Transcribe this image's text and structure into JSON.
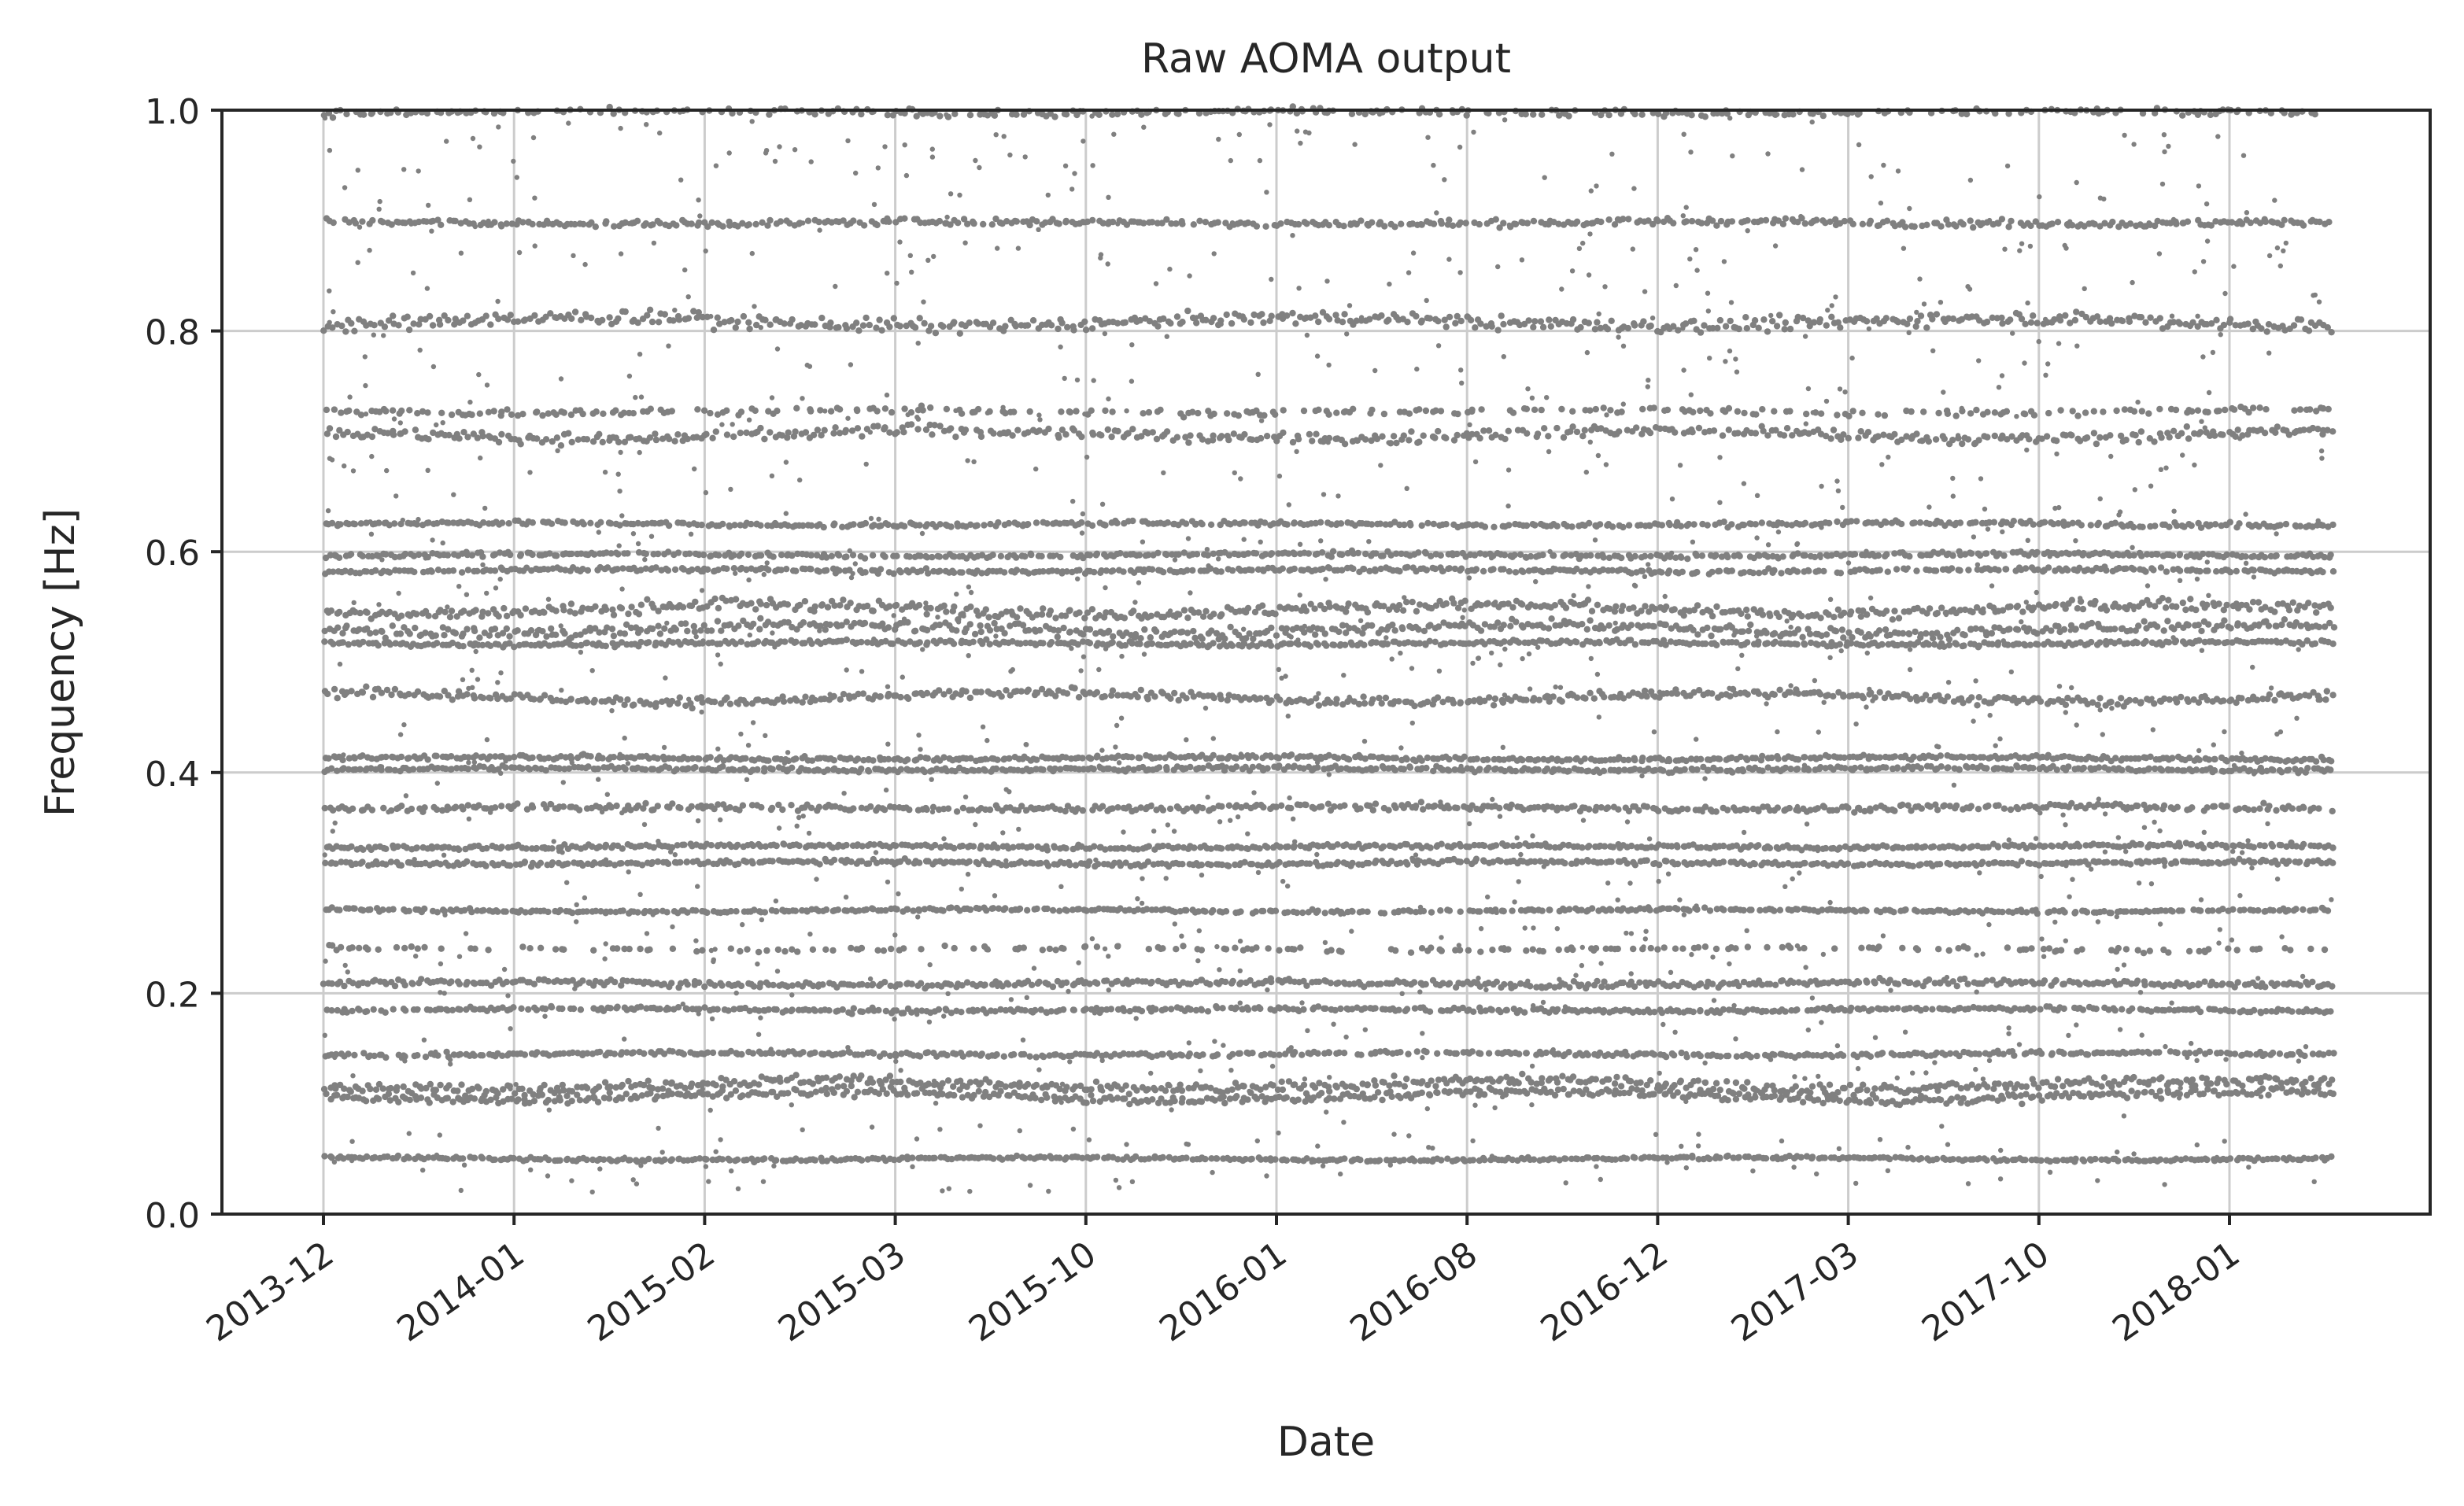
{
  "chart_data": {
    "type": "scatter",
    "title": "Raw AOMA output",
    "xlabel": "Date",
    "ylabel": "Frequency [Hz]",
    "ylim": [
      0.0,
      1.0
    ],
    "yticks": [
      0.0,
      0.2,
      0.4,
      0.6,
      0.8,
      1.0
    ],
    "ytick_labels": [
      "0.0",
      "0.2",
      "0.4",
      "0.6",
      "0.8",
      "1.0"
    ],
    "xtick_labels": [
      "2013-12",
      "2014-01",
      "2015-02",
      "2015-03",
      "2015-10",
      "2016-01",
      "2016-08",
      "2016-12",
      "2017-03",
      "2017-10",
      "2018-01"
    ],
    "x_axis_note": "categorical date ticks; data spans from first tick to roughly half a tick-spacing past last tick",
    "x_span_in_tick_units": [
      0,
      10.55
    ],
    "grid": true,
    "marker_color": "#808080",
    "grid_color": "#cccccc",
    "axis_color": "#262626",
    "frequency_bands": [
      {
        "f": 0.05,
        "spread": 0.0015,
        "density": 1.0
      },
      {
        "f": 0.107,
        "spread": 0.004,
        "density": 1.0
      },
      {
        "f": 0.117,
        "spread": 0.005,
        "density": 1.0
      },
      {
        "f": 0.145,
        "spread": 0.002,
        "density": 0.9
      },
      {
        "f": 0.185,
        "spread": 0.002,
        "density": 0.9
      },
      {
        "f": 0.209,
        "spread": 0.003,
        "density": 1.0
      },
      {
        "f": 0.24,
        "spread": 0.002,
        "density": 0.35
      },
      {
        "f": 0.275,
        "spread": 0.0015,
        "density": 0.9
      },
      {
        "f": 0.318,
        "spread": 0.002,
        "density": 1.0
      },
      {
        "f": 0.333,
        "spread": 0.002,
        "density": 1.0
      },
      {
        "f": 0.368,
        "spread": 0.003,
        "density": 0.9
      },
      {
        "f": 0.403,
        "spread": 0.002,
        "density": 1.0
      },
      {
        "f": 0.413,
        "spread": 0.002,
        "density": 1.0
      },
      {
        "f": 0.468,
        "spread": 0.004,
        "density": 1.0
      },
      {
        "f": 0.517,
        "spread": 0.002,
        "density": 1.0
      },
      {
        "f": 0.53,
        "spread": 0.005,
        "density": 1.0
      },
      {
        "f": 0.548,
        "spread": 0.005,
        "density": 1.0
      },
      {
        "f": 0.583,
        "spread": 0.002,
        "density": 0.9
      },
      {
        "f": 0.597,
        "spread": 0.002,
        "density": 0.9
      },
      {
        "f": 0.625,
        "spread": 0.002,
        "density": 0.9
      },
      {
        "f": 0.706,
        "spread": 0.005,
        "density": 0.9
      },
      {
        "f": 0.727,
        "spread": 0.003,
        "density": 0.5
      },
      {
        "f": 0.808,
        "spread": 0.006,
        "density": 1.0
      },
      {
        "f": 0.898,
        "spread": 0.003,
        "density": 0.9
      },
      {
        "f": 0.998,
        "spread": 0.003,
        "density": 0.6
      }
    ]
  }
}
